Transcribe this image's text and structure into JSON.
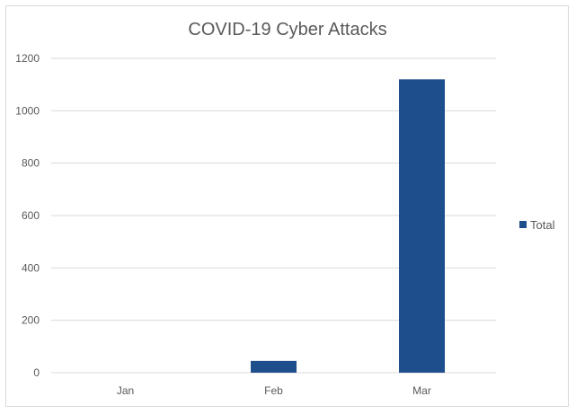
{
  "chart_data": {
    "type": "bar",
    "title": "COVID-19 Cyber Attacks",
    "xlabel": "",
    "ylabel": "",
    "categories": [
      "Jan",
      "Feb",
      "Mar"
    ],
    "series": [
      {
        "name": "Total",
        "values": [
          0,
          45,
          1120
        ],
        "color": "#1f4e8c"
      }
    ],
    "ylim": [
      0,
      1200
    ],
    "yticks": [
      0,
      200,
      400,
      600,
      800,
      1000,
      1200
    ],
    "ytick_labels": [
      "0",
      "200",
      "400",
      "600",
      "800",
      "1000",
      "1200"
    ],
    "grid": true,
    "legend": "right"
  }
}
